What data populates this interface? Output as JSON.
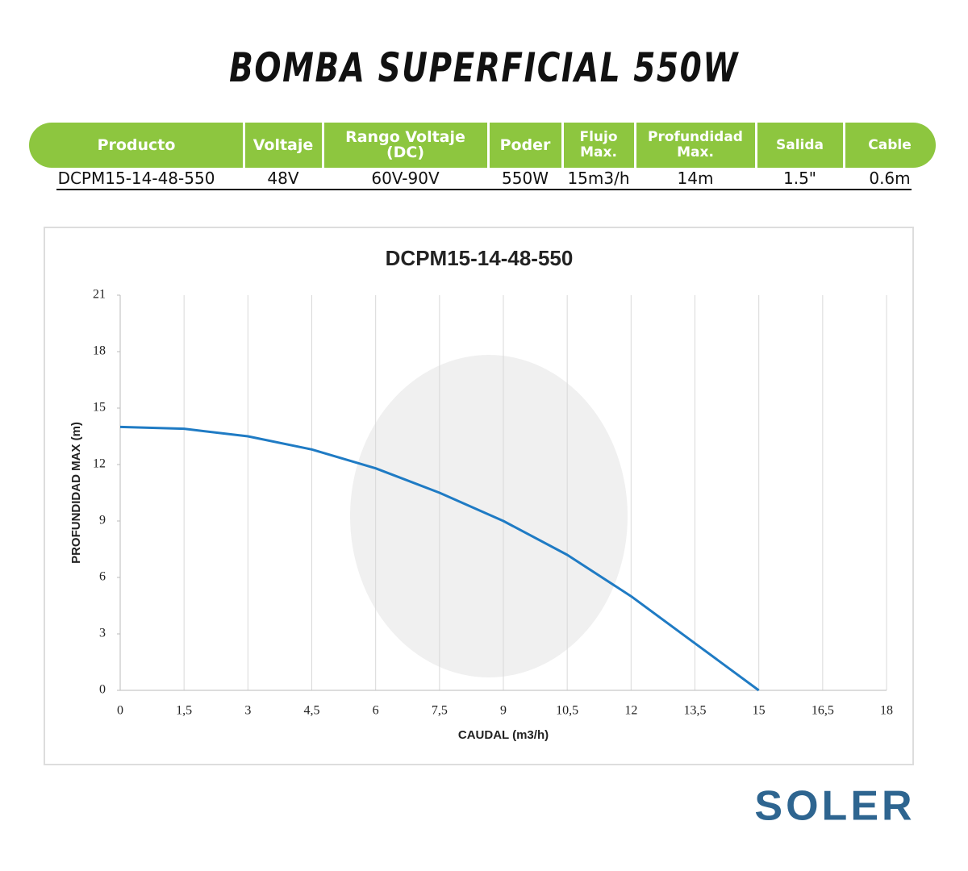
{
  "header": {
    "title": "BOMBA SUPERFICIAL 550W"
  },
  "table": {
    "headers": [
      "Producto",
      "Voltaje",
      "Rango Voltaje (DC)",
      "Poder",
      "Flujo Max.",
      "Profundidad Max.",
      "Salida",
      "Cable"
    ],
    "rows": [
      [
        "DCPM15-14-48-550",
        "48V",
        "60V-90V",
        "550W",
        "15m3/h",
        "14m",
        "1.5\"",
        "0.6m"
      ]
    ]
  },
  "chart_data": {
    "type": "line",
    "title": "DCPM15-14-48-550",
    "x_label": "CAUDAL (m3/h)",
    "y_label": "PROFUNDIDAD MAX (m)",
    "x": [
      0,
      1.5,
      3,
      4.5,
      6,
      7.5,
      9,
      10.5,
      12,
      13.5,
      15
    ],
    "values": [
      14,
      13.9,
      13.5,
      12.8,
      11.8,
      10.5,
      9,
      7.2,
      5,
      2.5,
      0
    ],
    "color": "#1f7bc4",
    "xlim": [
      0,
      18
    ],
    "xticks": [
      0,
      {
        "value": 1.5,
        "label": "1,5"
      },
      3,
      {
        "value": 4.5,
        "label": "4,5"
      },
      6,
      {
        "value": 7.5,
        "label": "7,5"
      },
      9,
      {
        "value": 10.5,
        "label": "10,5"
      },
      12,
      {
        "value": 13.5,
        "label": "13,5"
      },
      15,
      {
        "value": 16.5,
        "label": "16,5"
      },
      18
    ],
    "ylim": [
      0,
      21
    ],
    "yticks": [
      0,
      3,
      6,
      9,
      12,
      15,
      18,
      21
    ],
    "grid": true
  },
  "logo": {
    "text": "SOLER"
  }
}
